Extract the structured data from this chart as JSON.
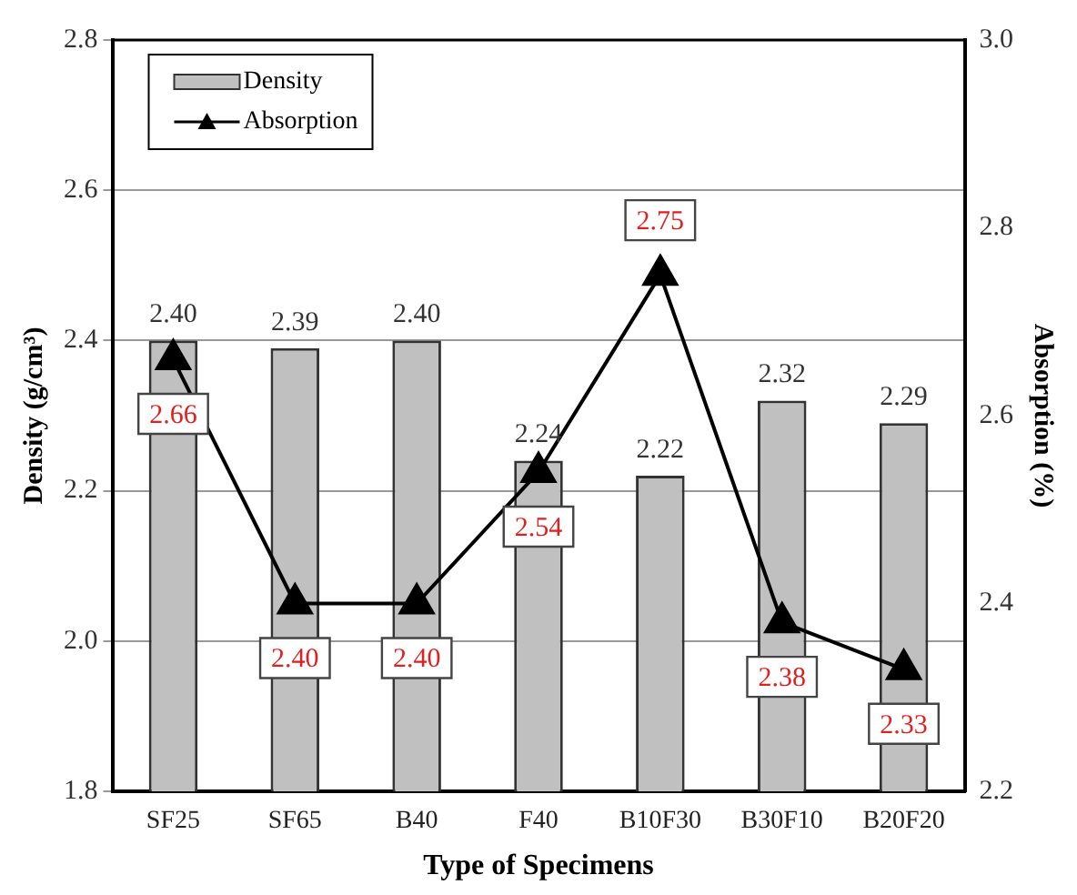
{
  "chart_data": {
    "type": "bar",
    "xlabel": "Type of Specimens",
    "ylabel": "Density (g/cm³)",
    "y2label": "Absorption (%)",
    "categories": [
      "SF25",
      "SF65",
      "B40",
      "F40",
      "B10F30",
      "B30F10",
      "B20F20"
    ],
    "series": [
      {
        "name": "Density",
        "color": "#c0c0c0",
        "values": [
          2.4,
          2.39,
          2.4,
          2.24,
          2.22,
          2.32,
          2.29
        ],
        "value_labels": [
          "2.40",
          "2.39",
          "2.40",
          "2.24",
          "2.22",
          "2.32",
          "2.29"
        ]
      },
      {
        "name": "Absorption",
        "type": "line",
        "axis": "y2",
        "color": "#000000",
        "marker": "triangle",
        "values": [
          2.66,
          2.4,
          2.4,
          2.54,
          2.75,
          2.38,
          2.33
        ],
        "value_labels": [
          "2.66",
          "2.40",
          "2.40",
          "2.54",
          "2.75",
          "2.38",
          "2.33"
        ]
      }
    ],
    "ylim": [
      1.8,
      2.8
    ],
    "yticks": [
      {
        "value": 1.8,
        "label": "1.8"
      },
      {
        "value": 2.0,
        "label": "2.0"
      },
      {
        "value": 2.2,
        "label": "2.2"
      },
      {
        "value": 2.4,
        "label": "2.4"
      },
      {
        "value": 2.6,
        "label": "2.6"
      },
      {
        "value": 2.8,
        "label": "2.8"
      }
    ],
    "y2lim": [
      2.2,
      3.0
    ],
    "y2ticks": [
      {
        "value": 2.2,
        "label": "2.2"
      },
      {
        "value": 2.4,
        "label": "2.4"
      },
      {
        "value": 2.6,
        "label": "2.6"
      },
      {
        "value": 2.8,
        "label": "2.8"
      },
      {
        "value": 3.0,
        "label": "3.0"
      }
    ],
    "grid": "y",
    "legend": "top left",
    "line_style": "solid"
  }
}
